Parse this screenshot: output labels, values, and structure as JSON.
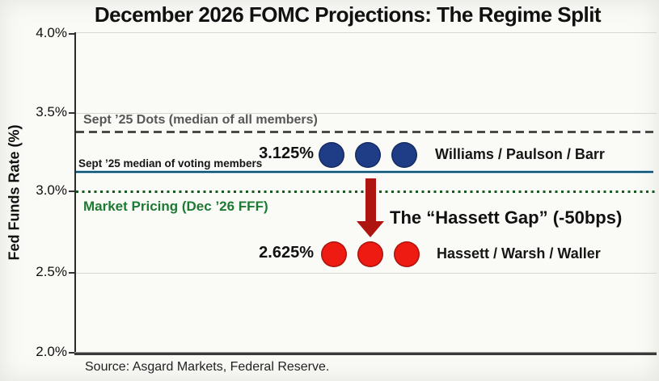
{
  "title": "December 2026 FOMC Projections: The Regime Split",
  "axis": {
    "ylabel": "Fed Funds Rate (%)",
    "ticks": [
      "4.0%",
      "3.5%",
      "3.0%",
      "2.5%",
      "2.0%"
    ]
  },
  "reference_lines": {
    "dots_all": {
      "label": "Sept ’25 Dots (median of all members)",
      "value": 3.375,
      "style": "dashed",
      "color": "#4a4a4a"
    },
    "voting": {
      "label": "Sept ’25 median of voting members",
      "value": 3.125,
      "style": "solid",
      "color": "#114e6e"
    },
    "market": {
      "label": "Market Pricing (Dec ’26 FFF)",
      "value": 3.0,
      "style": "dotted",
      "color": "#14591f"
    }
  },
  "groups": {
    "hawks": {
      "value_label": "3.125%",
      "names": "Williams / Paulson / Barr",
      "count": 3,
      "color": "#1f3d87",
      "dot_name": "blue-dot"
    },
    "doves": {
      "value_label": "2.625%",
      "names": "Hassett / Warsh / Waller",
      "count": 3,
      "color": "#ee1b12",
      "dot_name": "red-dot"
    }
  },
  "annotation": {
    "text": "The “Hassett Gap” (-50bps)"
  },
  "source": "Source: Asgard Markets, Federal Reserve.",
  "colors": {
    "blue_dot": "#1f3d87",
    "red_dot": "#ee1b12",
    "arrow_red": "#ae1410",
    "green_label": "#1d7a33",
    "gray_label": "#575757"
  },
  "chart_data": {
    "type": "scatter",
    "title": "December 2026 FOMC Projections: The Regime Split",
    "xlabel": "",
    "ylabel": "Fed Funds Rate (%)",
    "ylim": [
      2.0,
      4.0
    ],
    "yticks": [
      4.0,
      3.5,
      3.0,
      2.5,
      2.0
    ],
    "grid": "faint horizontal gridlines at each 0.5% tick",
    "legend_position": "none",
    "series": [
      {
        "name": "Williams / Paulson / Barr",
        "y": 3.125,
        "points": 3,
        "data_label": "3.125%",
        "color": "#1f3d87",
        "marker": "circle"
      },
      {
        "name": "Hassett / Warsh / Waller",
        "y": 2.625,
        "points": 3,
        "data_label": "2.625%",
        "color": "#ee1b12",
        "marker": "circle"
      }
    ],
    "reference_lines": [
      {
        "label": "Sept ’25 Dots (median of all members)",
        "y": 3.375,
        "style": "dashed",
        "color": "#4a4a4a"
      },
      {
        "label": "Sept ’25 median of voting members",
        "y": 3.125,
        "style": "solid",
        "color": "#114e6e"
      },
      {
        "label": "Market Pricing (Dec ’26 FFF)",
        "y": 3.0,
        "style": "dotted",
        "color": "#14591f"
      }
    ],
    "annotations": [
      {
        "text": "The “Hassett Gap” (-50bps)",
        "type": "down-arrow",
        "from_y": 3.125,
        "to_y": 2.625,
        "arrow_color": "#ae1410"
      }
    ],
    "source": "Source: Asgard Markets, Federal Reserve."
  }
}
